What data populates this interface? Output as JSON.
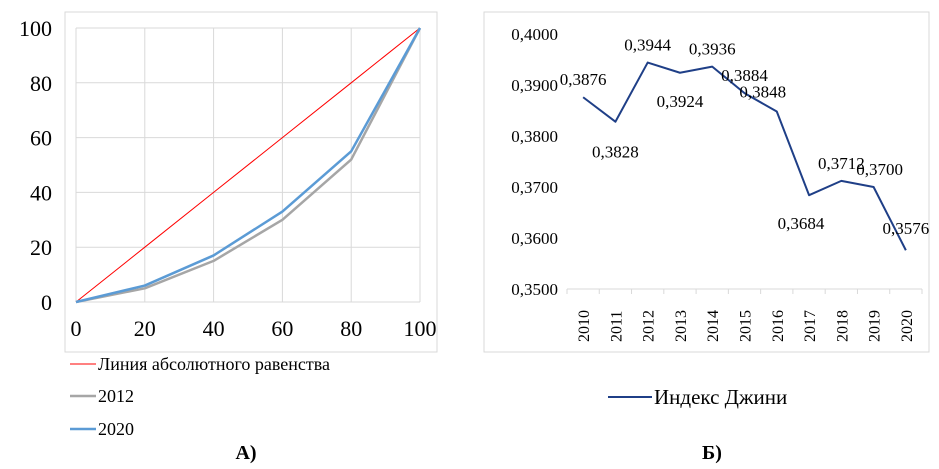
{
  "panel_labels": {
    "left": "А)",
    "right": "Б)"
  },
  "chart_data": [
    {
      "type": "line",
      "x": [
        0,
        20,
        40,
        60,
        80,
        100
      ],
      "xlim": [
        0,
        100
      ],
      "ylim": [
        0,
        100
      ],
      "xticks": [
        "0",
        "20",
        "40",
        "60",
        "80",
        "100"
      ],
      "yticks": [
        "0",
        "20",
        "40",
        "60",
        "80",
        "100"
      ],
      "grid": true,
      "legend_position": "bottom",
      "series": [
        {
          "name": "Линия абсолютного равенства",
          "values": [
            0,
            20,
            40,
            60,
            80,
            100
          ],
          "color": "#ff0000"
        },
        {
          "name": "2012",
          "values": [
            0,
            5,
            15,
            30,
            52,
            100
          ],
          "color": "#a6a6a6"
        },
        {
          "name": "2020",
          "values": [
            0,
            6,
            17,
            33,
            55,
            100
          ],
          "color": "#5b9bd5"
        }
      ]
    },
    {
      "type": "line",
      "categories": [
        "2010",
        "2011",
        "2012",
        "2013",
        "2014",
        "2015",
        "2016",
        "2017",
        "2018",
        "2019",
        "2020"
      ],
      "ylim": [
        0.35,
        0.4
      ],
      "yticks": [
        "0,3500",
        "0,3600",
        "0,3700",
        "0,3800",
        "0,3900",
        "0,4000"
      ],
      "grid": false,
      "legend_position": "bottom",
      "series": [
        {
          "name": "Индекс Джини",
          "color": "#1f3f87",
          "values": [
            0.3876,
            0.3828,
            0.3944,
            0.3924,
            0.3936,
            0.3884,
            0.3848,
            0.3684,
            0.3712,
            0.37,
            0.3576
          ],
          "labels": [
            "0,3876",
            "0,3828",
            "0,3944",
            "0,3924",
            "0,3936",
            "0,3884",
            "0,3848",
            "0,3684",
            "0,3712",
            "0,3700",
            "0,3576"
          ]
        }
      ]
    }
  ]
}
